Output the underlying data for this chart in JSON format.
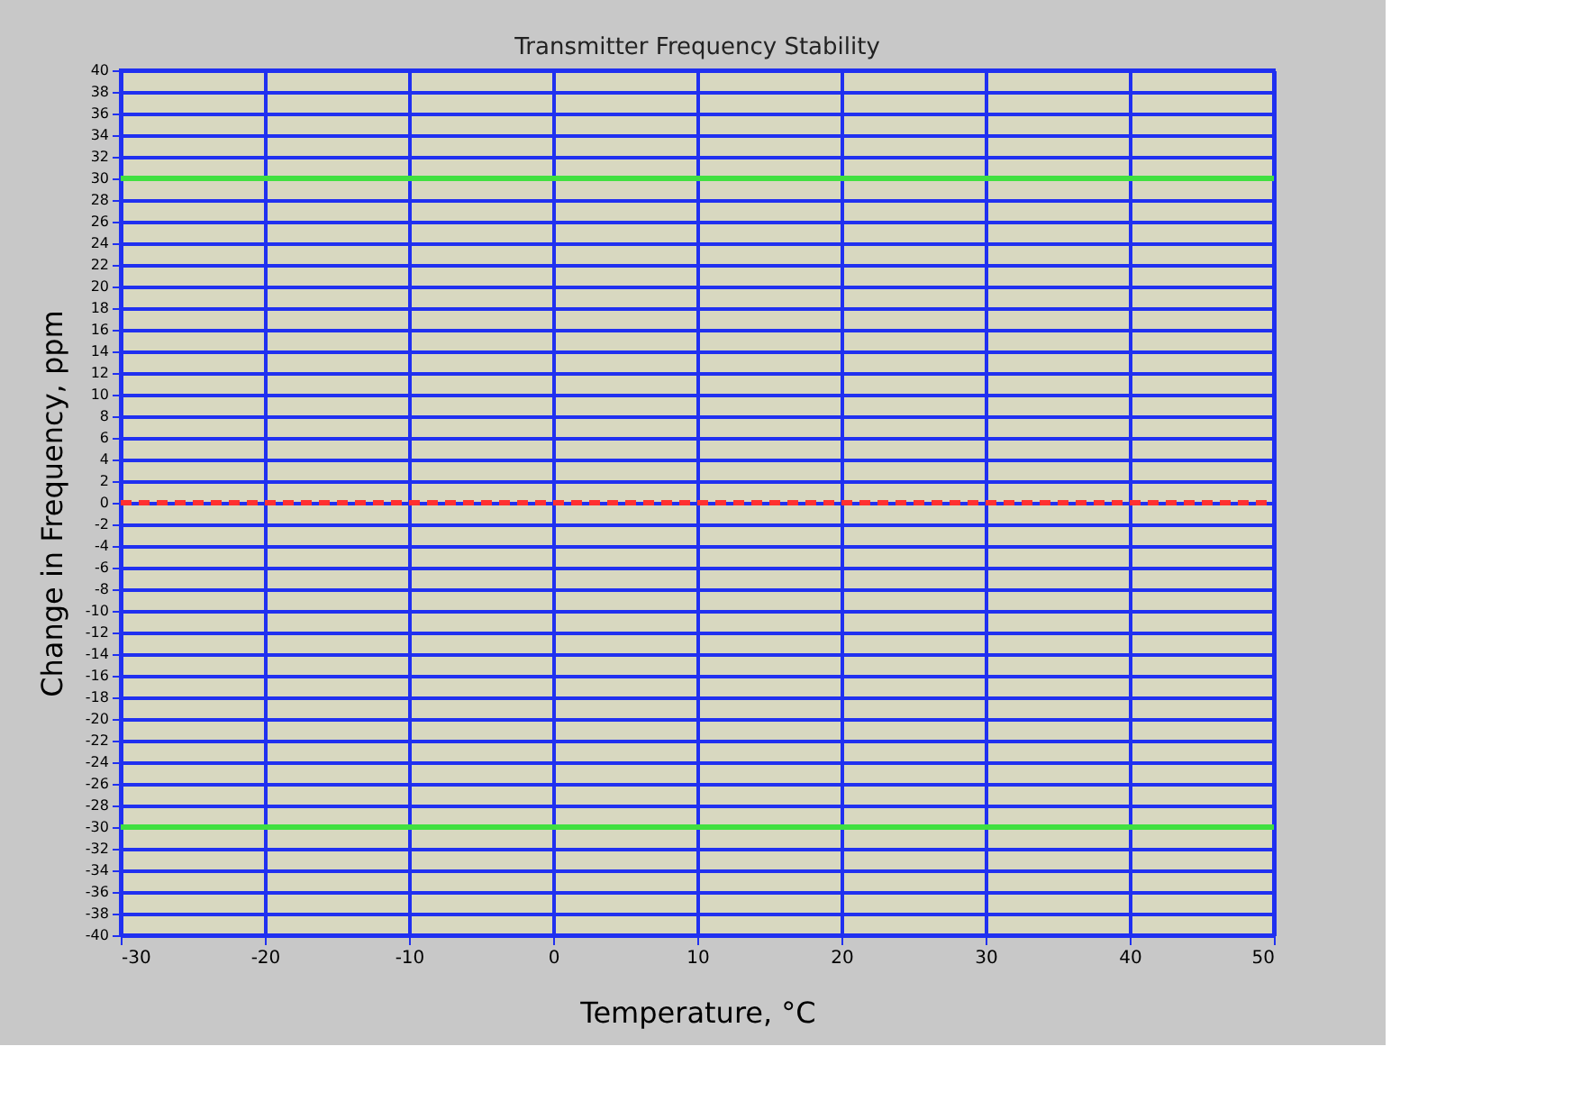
{
  "chart_data": {
    "type": "line",
    "title": "Transmitter Frequency Stability",
    "xlabel": "Temperature, °C",
    "ylabel": "Change in Frequency, ppm",
    "x": [
      -30,
      50
    ],
    "series": [
      {
        "color": "#ff3030",
        "values": [
          0,
          0
        ],
        "line_style": "dashed"
      },
      {
        "color": "#40e040",
        "values": [
          30,
          30
        ]
      },
      {
        "color": "#40e040",
        "values": [
          -30,
          -30
        ]
      }
    ],
    "xlim": [
      -30,
      50
    ],
    "xticks": [
      -30,
      -20,
      -10,
      0,
      10,
      20,
      30,
      40,
      50
    ],
    "ylim": [
      -40,
      40
    ],
    "yticks": [
      -40,
      -38,
      -36,
      -34,
      -32,
      -30,
      -28,
      -26,
      -24,
      -22,
      -20,
      -18,
      -16,
      -14,
      -12,
      -10,
      -8,
      -6,
      -4,
      -2,
      0,
      2,
      4,
      6,
      8,
      10,
      12,
      14,
      16,
      18,
      20,
      22,
      24,
      26,
      28,
      30,
      32,
      34,
      36,
      38,
      40
    ],
    "grid": true,
    "marker": "none"
  }
}
